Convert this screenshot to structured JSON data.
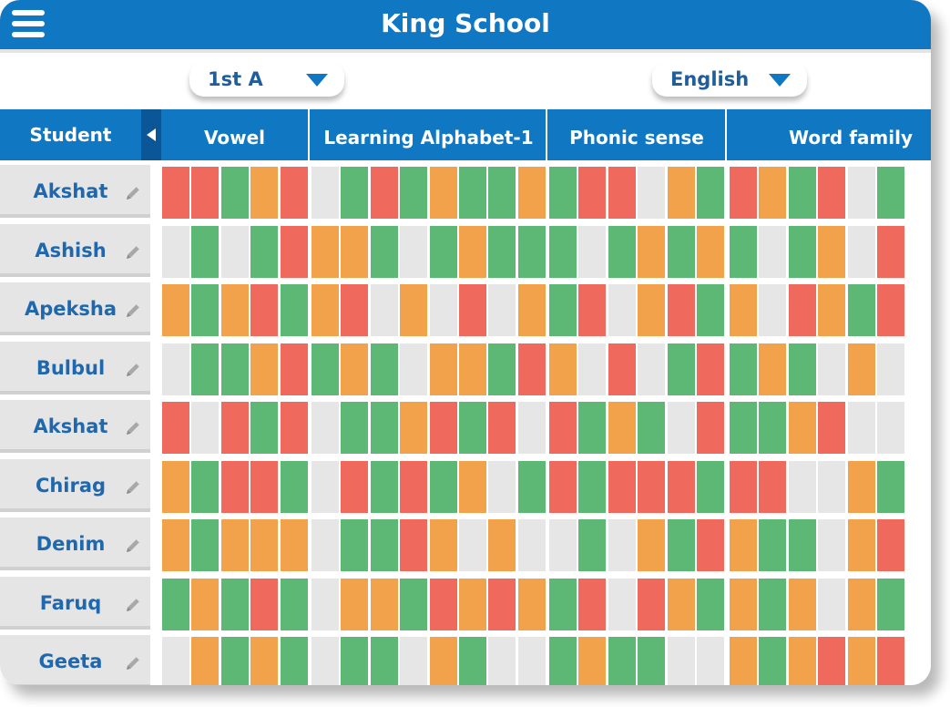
{
  "header": {
    "title": "King School",
    "menu_icon": "hamburger-menu-icon"
  },
  "filters": {
    "class_select": {
      "value": "1st A",
      "icon": "chevron-down-icon"
    },
    "subject_select": {
      "value": "English",
      "icon": "chevron-down-icon"
    }
  },
  "table": {
    "student_header": "Student",
    "collapse_icon": "caret-left-icon",
    "categories": [
      "Vowel",
      "Learning Alphabet-1",
      "Phonic sense",
      "Word family"
    ],
    "edit_icon": "pencil-icon",
    "status_colors": {
      "G": "#5cb874",
      "O": "#f3a24c",
      "R": "#ef6a5c",
      "E": "#e6e6e6"
    },
    "students": [
      {
        "name": "Akshat",
        "grades": [
          "R",
          "R",
          "G",
          "O",
          "R",
          "E",
          "G",
          "R",
          "G",
          "O",
          "G",
          "G",
          "O",
          "G",
          "R",
          "R",
          "E",
          "O",
          "G",
          "R",
          "O",
          "G",
          "R",
          "E",
          "G",
          "O"
        ]
      },
      {
        "name": "Ashish",
        "grades": [
          "E",
          "G",
          "E",
          "G",
          "R",
          "O",
          "O",
          "G",
          "E",
          "G",
          "O",
          "G",
          "G",
          "G",
          "E",
          "G",
          "O",
          "G",
          "O",
          "G",
          "E",
          "G",
          "O",
          "E",
          "R",
          "G"
        ]
      },
      {
        "name": "Apeksha",
        "grades": [
          "O",
          "G",
          "O",
          "R",
          "G",
          "O",
          "R",
          "E",
          "O",
          "E",
          "R",
          "E",
          "O",
          "G",
          "R",
          "E",
          "O",
          "R",
          "G",
          "O",
          "E",
          "R",
          "O",
          "G",
          "R",
          "R"
        ]
      },
      {
        "name": "Bulbul",
        "grades": [
          "E",
          "G",
          "G",
          "O",
          "R",
          "G",
          "O",
          "G",
          "E",
          "O",
          "O",
          "G",
          "R",
          "O",
          "E",
          "R",
          "E",
          "G",
          "R",
          "G",
          "O",
          "G",
          "E",
          "O",
          "E",
          "O"
        ]
      },
      {
        "name": "Akshat",
        "grades": [
          "R",
          "E",
          "R",
          "G",
          "R",
          "E",
          "G",
          "G",
          "O",
          "R",
          "G",
          "R",
          "E",
          "R",
          "G",
          "O",
          "G",
          "E",
          "R",
          "G",
          "G",
          "O",
          "R",
          "E",
          "E",
          "R"
        ]
      },
      {
        "name": "Chirag",
        "grades": [
          "O",
          "G",
          "R",
          "R",
          "G",
          "E",
          "R",
          "G",
          "R",
          "G",
          "O",
          "E",
          "G",
          "R",
          "G",
          "R",
          "R",
          "R",
          "G",
          "R",
          "R",
          "E",
          "E",
          "O",
          "G",
          "O"
        ]
      },
      {
        "name": "Denim",
        "grades": [
          "O",
          "G",
          "O",
          "O",
          "O",
          "E",
          "G",
          "G",
          "R",
          "O",
          "E",
          "O",
          "E",
          "E",
          "G",
          "E",
          "O",
          "G",
          "R",
          "O",
          "G",
          "G",
          "E",
          "O",
          "R",
          "G"
        ]
      },
      {
        "name": "Faruq",
        "grades": [
          "G",
          "O",
          "G",
          "R",
          "G",
          "E",
          "O",
          "O",
          "G",
          "R",
          "O",
          "R",
          "O",
          "G",
          "R",
          "E",
          "R",
          "O",
          "G",
          "O",
          "G",
          "O",
          "E",
          "O",
          "G",
          "O"
        ]
      },
      {
        "name": "Geeta",
        "grades": [
          "E",
          "O",
          "G",
          "O",
          "G",
          "E",
          "G",
          "G",
          "E",
          "O",
          "G",
          "E",
          "E",
          "G",
          "O",
          "G",
          "G",
          "E",
          "E",
          "O",
          "G",
          "O",
          "R",
          "O",
          "R",
          "R"
        ]
      }
    ]
  }
}
